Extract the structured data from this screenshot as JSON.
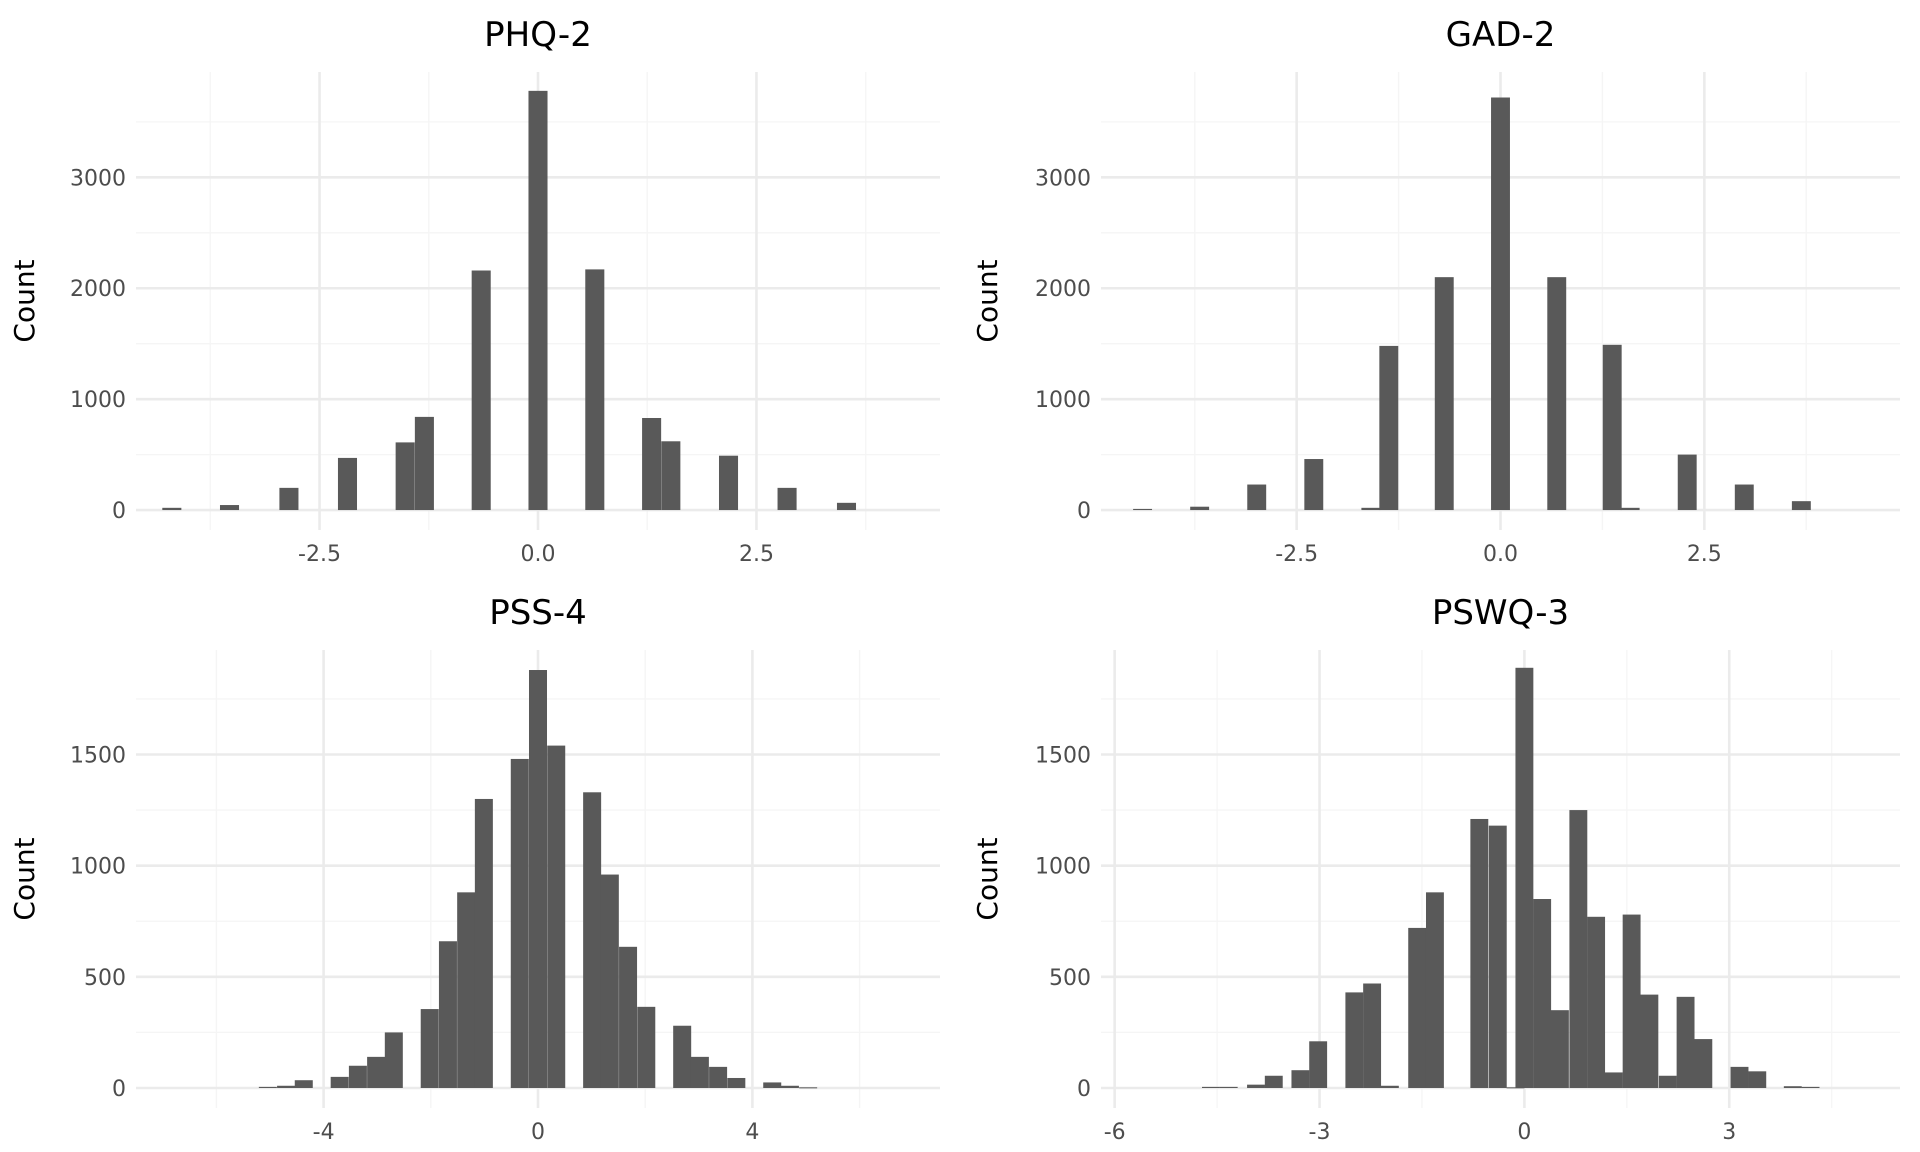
{
  "chart_data": [
    {
      "type": "bar",
      "title": "PHQ-2",
      "xlabel": "",
      "ylabel": "Count",
      "xlim": [
        -4.6,
        4.6
      ],
      "ylim": [
        -180,
        3950
      ],
      "xticks": [
        -2.5,
        0.0,
        2.5
      ],
      "xtick_labels": [
        "-2.5",
        "0.0",
        "2.5"
      ],
      "yticks": [
        0,
        1000,
        2000,
        3000
      ],
      "ytick_labels": [
        "0",
        "1000",
        "2000",
        "3000"
      ],
      "bin_width": 0.218,
      "bins": [
        {
          "x": -4.19,
          "count": 20
        },
        {
          "x": -3.53,
          "count": 45
        },
        {
          "x": -2.85,
          "count": 200
        },
        {
          "x": -2.18,
          "count": 470
        },
        {
          "x": -1.52,
          "count": 610
        },
        {
          "x": -1.3,
          "count": 840
        },
        {
          "x": -0.65,
          "count": 2160
        },
        {
          "x": 0.0,
          "count": 3780
        },
        {
          "x": 0.65,
          "count": 2170
        },
        {
          "x": 1.3,
          "count": 830
        },
        {
          "x": 1.52,
          "count": 620
        },
        {
          "x": 2.18,
          "count": 490
        },
        {
          "x": 2.85,
          "count": 200
        },
        {
          "x": 3.53,
          "count": 65
        }
      ]
    },
    {
      "type": "bar",
      "title": "GAD-2",
      "xlabel": "",
      "ylabel": "Count",
      "xlim": [
        -4.9,
        4.9
      ],
      "ylim": [
        -180,
        3950
      ],
      "xticks": [
        -2.5,
        0.0,
        2.5
      ],
      "xtick_labels": [
        "-2.5",
        "0.0",
        "2.5"
      ],
      "yticks": [
        0,
        1000,
        2000,
        3000
      ],
      "ytick_labels": [
        "0",
        "1000",
        "2000",
        "3000"
      ],
      "bin_width": 0.232,
      "bins": [
        {
          "x": -4.39,
          "count": 10
        },
        {
          "x": -3.69,
          "count": 30
        },
        {
          "x": -2.99,
          "count": 230
        },
        {
          "x": -2.29,
          "count": 460
        },
        {
          "x": -1.59,
          "count": 20
        },
        {
          "x": -1.37,
          "count": 1480
        },
        {
          "x": -0.69,
          "count": 2100
        },
        {
          "x": 0.0,
          "count": 3720
        },
        {
          "x": 0.69,
          "count": 2100
        },
        {
          "x": 1.37,
          "count": 1490
        },
        {
          "x": 1.59,
          "count": 20
        },
        {
          "x": 2.29,
          "count": 500
        },
        {
          "x": 2.99,
          "count": 230
        },
        {
          "x": 3.69,
          "count": 80
        }
      ]
    },
    {
      "type": "bar",
      "title": "PSS-4",
      "xlabel": "",
      "ylabel": "Count",
      "xlim": [
        -7.5,
        7.5
      ],
      "ylim": [
        -90,
        1970
      ],
      "xticks": [
        -4,
        0,
        4
      ],
      "xtick_labels": [
        "-4",
        "0",
        "4"
      ],
      "yticks": [
        0,
        500,
        1000,
        1500
      ],
      "ytick_labels": [
        "0",
        "500",
        "1000",
        "1500"
      ],
      "bin_width": 0.336,
      "bins": [
        {
          "x": -5.04,
          "count": 5
        },
        {
          "x": -4.7,
          "count": 10
        },
        {
          "x": -4.37,
          "count": 35
        },
        {
          "x": -3.7,
          "count": 50
        },
        {
          "x": -3.36,
          "count": 100
        },
        {
          "x": -3.02,
          "count": 140
        },
        {
          "x": -2.69,
          "count": 250
        },
        {
          "x": -2.02,
          "count": 355
        },
        {
          "x": -1.68,
          "count": 660
        },
        {
          "x": -1.34,
          "count": 880
        },
        {
          "x": -1.01,
          "count": 1300
        },
        {
          "x": -0.34,
          "count": 1480
        },
        {
          "x": 0.0,
          "count": 1880
        },
        {
          "x": 0.34,
          "count": 1540
        },
        {
          "x": 1.01,
          "count": 1330
        },
        {
          "x": 1.34,
          "count": 960
        },
        {
          "x": 1.68,
          "count": 635
        },
        {
          "x": 2.02,
          "count": 365
        },
        {
          "x": 2.69,
          "count": 280
        },
        {
          "x": 3.02,
          "count": 140
        },
        {
          "x": 3.36,
          "count": 95
        },
        {
          "x": 3.7,
          "count": 45
        },
        {
          "x": 4.37,
          "count": 25
        },
        {
          "x": 4.7,
          "count": 10
        },
        {
          "x": 5.04,
          "count": 3
        }
      ]
    },
    {
      "type": "bar",
      "title": "PSWQ-3",
      "xlabel": "",
      "ylabel": "Count",
      "xlim": [
        -6.2,
        5.5
      ],
      "ylim": [
        -90,
        1970
      ],
      "xticks": [
        -6,
        -3,
        0,
        3
      ],
      "xtick_labels": [
        "-6",
        "-3",
        "0",
        "3"
      ],
      "yticks": [
        0,
        500,
        1000,
        1500
      ],
      "ytick_labels": [
        "0",
        "500",
        "1000",
        "1500"
      ],
      "bin_width": 0.262,
      "bins": [
        {
          "x": -4.59,
          "count": 5
        },
        {
          "x": -4.33,
          "count": 5
        },
        {
          "x": -3.93,
          "count": 15
        },
        {
          "x": -3.67,
          "count": 55
        },
        {
          "x": -3.28,
          "count": 80
        },
        {
          "x": -3.02,
          "count": 210
        },
        {
          "x": -2.49,
          "count": 430
        },
        {
          "x": -2.23,
          "count": 470
        },
        {
          "x": -1.97,
          "count": 10
        },
        {
          "x": -1.57,
          "count": 720
        },
        {
          "x": -1.31,
          "count": 880
        },
        {
          "x": -0.66,
          "count": 1210
        },
        {
          "x": -0.39,
          "count": 1180
        },
        {
          "x": -0.13,
          "count": 3
        },
        {
          "x": 0.0,
          "count": 1890
        },
        {
          "x": 0.26,
          "count": 850
        },
        {
          "x": 0.52,
          "count": 350
        },
        {
          "x": 0.79,
          "count": 1250
        },
        {
          "x": 1.05,
          "count": 770
        },
        {
          "x": 1.31,
          "count": 70
        },
        {
          "x": 1.57,
          "count": 780
        },
        {
          "x": 1.83,
          "count": 420
        },
        {
          "x": 2.1,
          "count": 55
        },
        {
          "x": 2.36,
          "count": 410
        },
        {
          "x": 2.62,
          "count": 220
        },
        {
          "x": 3.15,
          "count": 95
        },
        {
          "x": 3.41,
          "count": 75
        },
        {
          "x": 3.93,
          "count": 8
        },
        {
          "x": 4.19,
          "count": 5
        }
      ]
    }
  ]
}
